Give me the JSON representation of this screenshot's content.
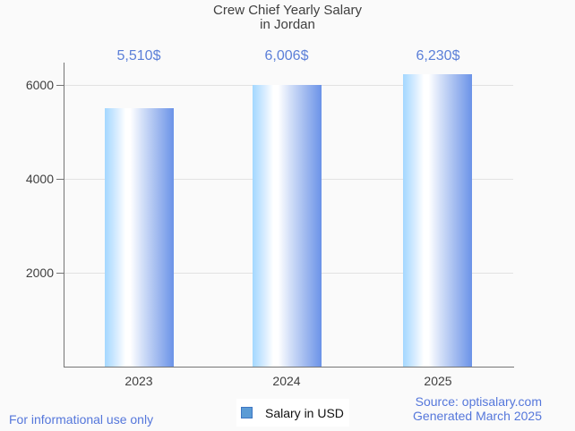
{
  "title": {
    "line1": "Crew Chief Yearly Salary",
    "line2": "in Jordan"
  },
  "chart_data": {
    "type": "bar",
    "categories": [
      "2023",
      "2024",
      "2025"
    ],
    "values": [
      5510,
      6006,
      6230
    ],
    "value_labels": [
      "5,510$",
      "6,006$",
      "6,230$"
    ],
    "series": [
      {
        "name": "Salary in USD",
        "values": [
          5510,
          6006,
          6230
        ]
      }
    ],
    "title": "Crew Chief Yearly Salary in Jordan",
    "xlabel": "",
    "ylabel": "",
    "y_ticks": [
      2000,
      4000,
      6000
    ],
    "y_tick_labels": [
      "6000",
      "4000",
      "2000"
    ],
    "ylim": [
      0,
      6480
    ],
    "grid": true,
    "legend_position": "bottom"
  },
  "legend": {
    "label": "Salary in USD",
    "marker_fill": "#5B9BD5",
    "marker_border": "#3E76C3"
  },
  "footer": {
    "left": "For informational use only",
    "source": "Source: optisalary.com",
    "generated": "Generated March 2025"
  },
  "colors": {
    "accent_blue": "#5B7FD8",
    "bar_gradient_left": "#A3D7FF",
    "bar_gradient_mid": "#FFFFFF",
    "bar_gradient_right": "#6B93E8",
    "axis_gray": "#757575",
    "grid_gray": "#E2E2E2",
    "text_dark": "#3F3F3F",
    "background": "#FAFAFA",
    "legend_background": "#FFFFFF"
  }
}
